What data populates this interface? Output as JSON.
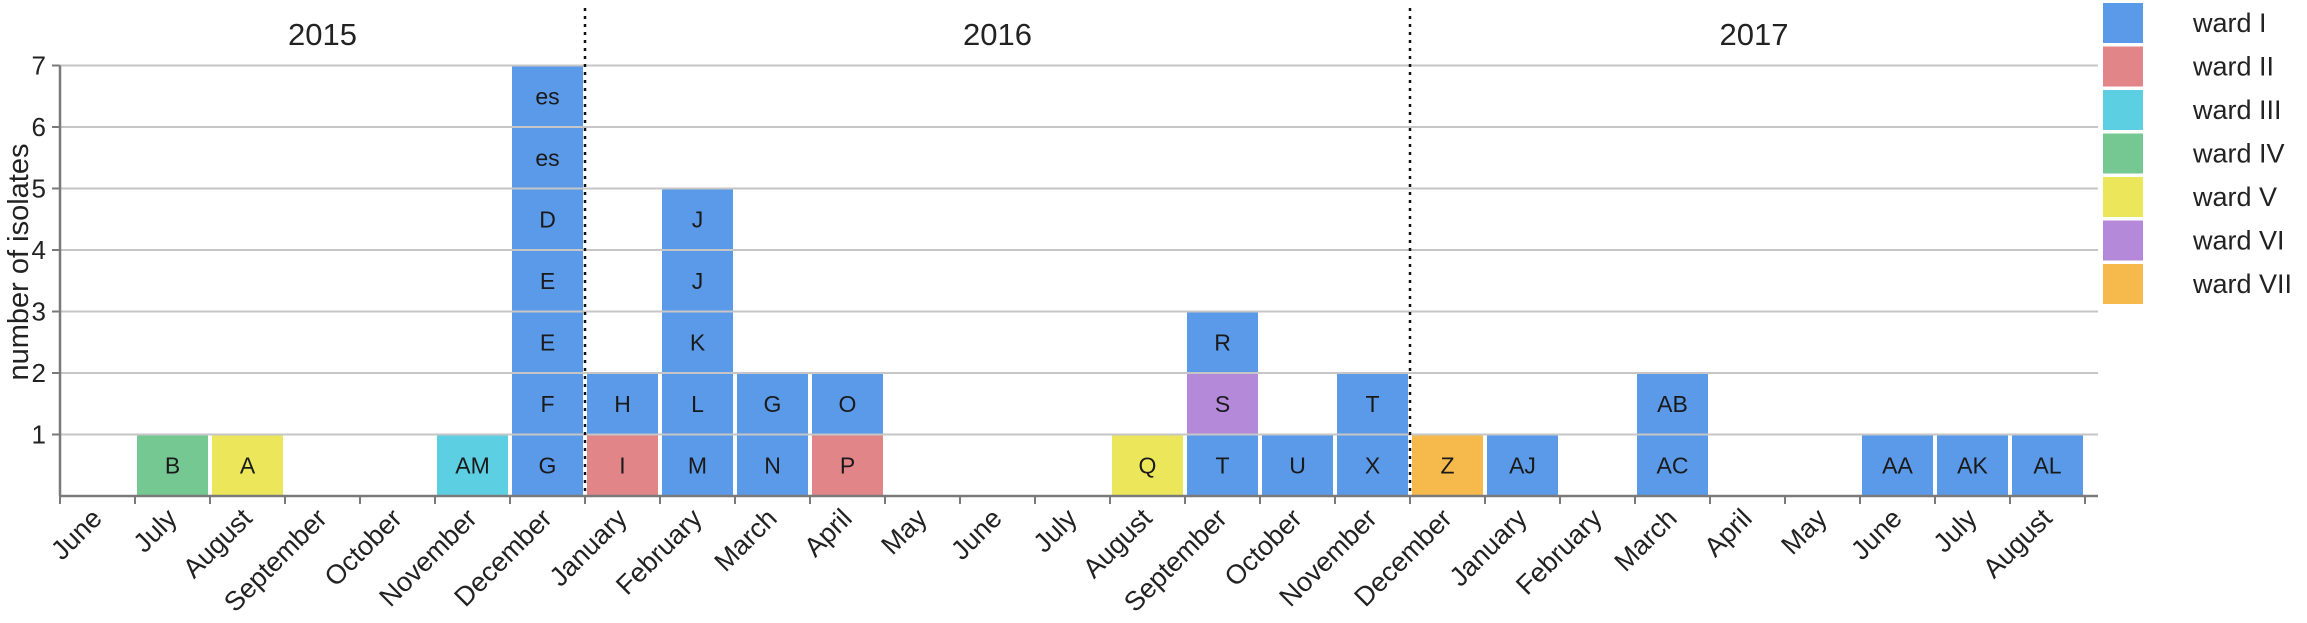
{
  "chart_data": {
    "type": "bar",
    "stacked": true,
    "title": "",
    "xlabel": "",
    "ylabel": "number of isolates",
    "ylim": [
      0,
      7
    ],
    "yticks": [
      1,
      2,
      3,
      4,
      5,
      6,
      7
    ],
    "grid": true,
    "legend_position": "top-right",
    "categories": [
      "June",
      "July",
      "August",
      "September",
      "October",
      "November",
      "December",
      "January",
      "February",
      "March",
      "April",
      "May",
      "June",
      "July",
      "August",
      "September",
      "October",
      "November",
      "December",
      "January",
      "February",
      "March",
      "April",
      "May",
      "June",
      "July",
      "August"
    ],
    "year_groups": [
      {
        "label": "2015",
        "start_index": 0,
        "end_index": 6
      },
      {
        "label": "2016",
        "start_index": 7,
        "end_index": 17
      },
      {
        "label": "2017",
        "start_index": 18,
        "end_index": 26
      }
    ],
    "series": [
      {
        "name": "ward I",
        "color": "#5b9ae8"
      },
      {
        "name": "ward II",
        "color": "#e28589"
      },
      {
        "name": "ward III",
        "color": "#5ccfe3"
      },
      {
        "name": "ward IV",
        "color": "#76c893"
      },
      {
        "name": "ward V",
        "color": "#ece75a"
      },
      {
        "name": "ward VI",
        "color": "#b489da"
      },
      {
        "name": "ward VII",
        "color": "#f5b94c"
      }
    ],
    "stacks": [
      [],
      [
        {
          "label": "B",
          "ward": "ward IV"
        }
      ],
      [
        {
          "label": "A",
          "ward": "ward V"
        }
      ],
      [],
      [],
      [
        {
          "label": "AM",
          "ward": "ward III"
        }
      ],
      [
        {
          "label": "G",
          "ward": "ward I"
        },
        {
          "label": "F",
          "ward": "ward I"
        },
        {
          "label": "E",
          "ward": "ward I"
        },
        {
          "label": "E",
          "ward": "ward I"
        },
        {
          "label": "D",
          "ward": "ward I"
        },
        {
          "label": "es",
          "ward": "ward I"
        },
        {
          "label": "es",
          "ward": "ward I"
        }
      ],
      [
        {
          "label": "I",
          "ward": "ward II"
        },
        {
          "label": "H",
          "ward": "ward I"
        }
      ],
      [
        {
          "label": "M",
          "ward": "ward I"
        },
        {
          "label": "L",
          "ward": "ward I"
        },
        {
          "label": "K",
          "ward": "ward I"
        },
        {
          "label": "J",
          "ward": "ward I"
        },
        {
          "label": "J",
          "ward": "ward I"
        }
      ],
      [
        {
          "label": "N",
          "ward": "ward I"
        },
        {
          "label": "G",
          "ward": "ward I"
        }
      ],
      [
        {
          "label": "P",
          "ward": "ward II"
        },
        {
          "label": "O",
          "ward": "ward I"
        }
      ],
      [],
      [],
      [],
      [
        {
          "label": "Q",
          "ward": "ward V"
        }
      ],
      [
        {
          "label": "T",
          "ward": "ward I"
        },
        {
          "label": "S",
          "ward": "ward VI"
        },
        {
          "label": "R",
          "ward": "ward I"
        }
      ],
      [
        {
          "label": "U",
          "ward": "ward I"
        }
      ],
      [
        {
          "label": "X",
          "ward": "ward I"
        },
        {
          "label": "T",
          "ward": "ward I"
        }
      ],
      [
        {
          "label": "Z",
          "ward": "ward VII"
        }
      ],
      [
        {
          "label": "AJ",
          "ward": "ward I"
        }
      ],
      [],
      [
        {
          "label": "AC",
          "ward": "ward I"
        },
        {
          "label": "AB",
          "ward": "ward I"
        }
      ],
      [],
      [],
      [
        {
          "label": "AA",
          "ward": "ward I"
        }
      ],
      [
        {
          "label": "AK",
          "ward": "ward I"
        }
      ],
      [
        {
          "label": "AL",
          "ward": "ward I"
        }
      ]
    ]
  }
}
